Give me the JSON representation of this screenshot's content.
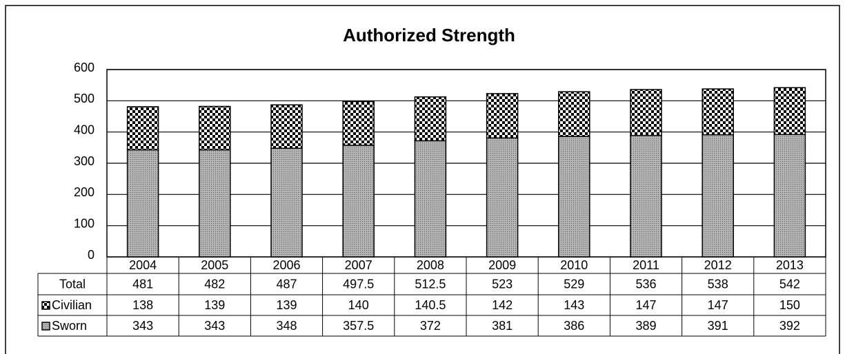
{
  "chart_data": {
    "type": "bar",
    "stacked": true,
    "title": "Authorized Strength",
    "categories": [
      "2004",
      "2005",
      "2006",
      "2007",
      "2008",
      "2009",
      "2010",
      "2011",
      "2012",
      "2013"
    ],
    "series": [
      {
        "name": "Civilian",
        "color": "#000000",
        "values": [
          138,
          139,
          139,
          140,
          140.5,
          142,
          143,
          147,
          147,
          150
        ]
      },
      {
        "name": "Sworn",
        "color": "#b4b4b4",
        "values": [
          343,
          343,
          348,
          357.5,
          372,
          381,
          386,
          389,
          391,
          392
        ]
      }
    ],
    "totals": {
      "name": "Total",
      "values": [
        481,
        482,
        487,
        497.5,
        512.5,
        523,
        529,
        536,
        538,
        542
      ]
    },
    "ylim": [
      0,
      600
    ],
    "yticks": [
      0,
      100,
      200,
      300,
      400,
      500,
      600
    ],
    "grid": true
  }
}
